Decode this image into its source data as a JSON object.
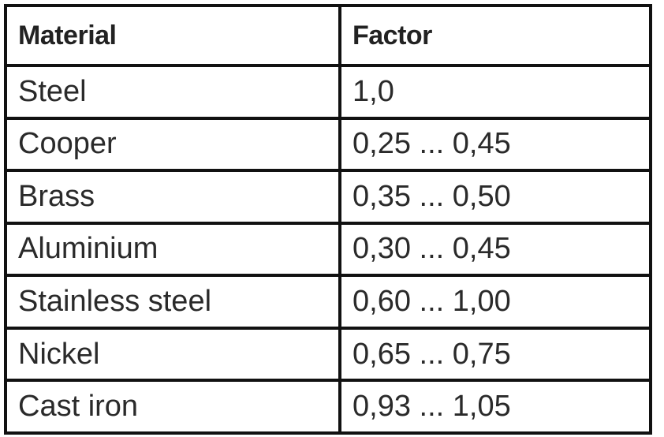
{
  "table": {
    "header": [
      "Material",
      "Factor"
    ],
    "rows": [
      [
        "Steel",
        "1,0"
      ],
      [
        "Cooper",
        "0,25 ... 0,45"
      ],
      [
        "Brass",
        "0,35 ... 0,50"
      ],
      [
        "Aluminium",
        "0,30 ... 0,45"
      ],
      [
        "Stainless steel",
        "0,60 ... 1,00"
      ],
      [
        "Nickel",
        "0,65 ... 0,75"
      ],
      [
        "Cast iron",
        "0,93 ... 1,05"
      ]
    ]
  }
}
